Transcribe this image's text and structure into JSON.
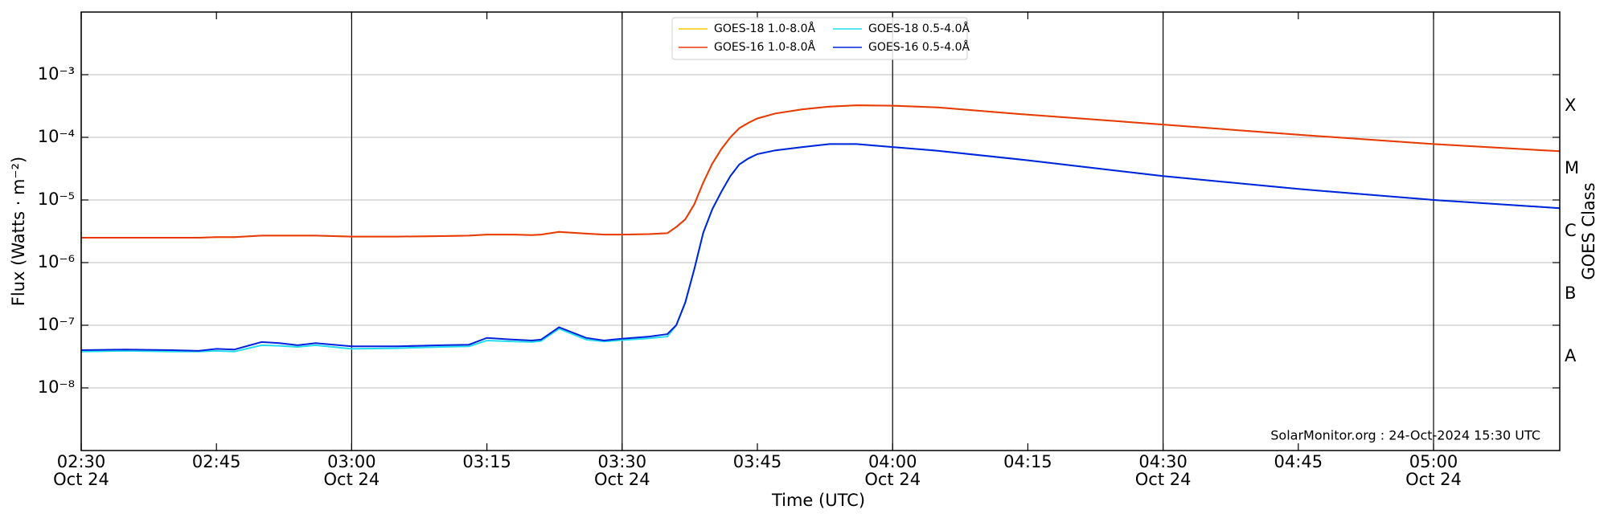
{
  "chart_data": {
    "type": "line",
    "y_label": "Flux (Watts · m⁻²)",
    "y2_label": "GOES Class",
    "x_label": "Time (UTC)",
    "annotation": "SolarMonitor.org : 24-Oct-2024 15:30 UTC",
    "log_y": true,
    "grid": true,
    "legend": "upper center",
    "xlim": [
      "02:30",
      "05:14"
    ],
    "xticks": [
      {
        "value": "02:30",
        "label": "02:30",
        "date": "Oct 24"
      },
      {
        "value": "02:45",
        "label": "02:45"
      },
      {
        "value": "03:00",
        "label": "03:00",
        "date": "Oct 24"
      },
      {
        "value": "03:15",
        "label": "03:15"
      },
      {
        "value": "03:30",
        "label": "03:30",
        "date": "Oct 24"
      },
      {
        "value": "03:45",
        "label": "03:45"
      },
      {
        "value": "04:00",
        "label": "04:00",
        "date": "Oct 24"
      },
      {
        "value": "04:15",
        "label": "04:15"
      },
      {
        "value": "04:30",
        "label": "04:30",
        "date": "Oct 24"
      },
      {
        "value": "04:45",
        "label": "04:45"
      },
      {
        "value": "05:00",
        "label": "05:00",
        "date": "Oct 24"
      }
    ],
    "ylim": [
      1e-09,
      0.01
    ],
    "yticks": [
      {
        "value": 0.001,
        "label": "10⁻³"
      },
      {
        "value": 0.0001,
        "label": "10⁻⁴"
      },
      {
        "value": 1e-05,
        "label": "10⁻⁵"
      },
      {
        "value": 1e-06,
        "label": "10⁻⁶"
      },
      {
        "value": 1e-07,
        "label": "10⁻⁷"
      },
      {
        "value": 1e-08,
        "label": "10⁻⁸"
      }
    ],
    "class_ticks": [
      {
        "value": 1e-08,
        "label": "A"
      },
      {
        "value": 1e-07,
        "label": "B"
      },
      {
        "value": 1e-06,
        "label": "C"
      },
      {
        "value": 1e-05,
        "label": "M"
      },
      {
        "value": 0.0001,
        "label": "X"
      }
    ],
    "x": [
      "02:30",
      "02:35",
      "02:40",
      "02:43",
      "02:45",
      "02:47",
      "02:50",
      "02:52",
      "02:54",
      "02:56",
      "03:00",
      "03:05",
      "03:10",
      "03:13",
      "03:15",
      "03:18",
      "03:20",
      "03:21",
      "03:23",
      "03:26",
      "03:28",
      "03:30",
      "03:33",
      "03:35",
      "03:36",
      "03:37",
      "03:38",
      "03:39",
      "03:40",
      "03:41",
      "03:42",
      "03:43",
      "03:44",
      "03:45",
      "03:47",
      "03:50",
      "03:53",
      "03:56",
      "04:00",
      "04:05",
      "04:15",
      "04:30",
      "04:45",
      "05:00",
      "05:14"
    ],
    "series": [
      {
        "name": "GOES-18 1.0-8.0Å",
        "color": "#ffcc00",
        "values": [
          2.5e-06,
          2.5e-06,
          2.5e-06,
          2.5e-06,
          2.55e-06,
          2.55e-06,
          2.7e-06,
          2.7e-06,
          2.7e-06,
          2.7e-06,
          2.6e-06,
          2.6e-06,
          2.65e-06,
          2.7e-06,
          2.8e-06,
          2.8e-06,
          2.75e-06,
          2.8e-06,
          3.1e-06,
          2.9e-06,
          2.8e-06,
          2.8e-06,
          2.85e-06,
          2.95e-06,
          3.7e-06,
          4.9e-06,
          8.5e-06,
          1.9e-05,
          3.8e-05,
          6.5e-05,
          0.0001,
          0.00014,
          0.00017,
          0.0002,
          0.00024,
          0.00028,
          0.00031,
          0.000325,
          0.00032,
          0.0003,
          0.00023,
          0.00016,
          0.00011,
          7.8e-05,
          6e-05
        ]
      },
      {
        "name": "GOES-16 1.0-8.0Å",
        "color": "#e8380d",
        "values": [
          2.5e-06,
          2.5e-06,
          2.5e-06,
          2.5e-06,
          2.55e-06,
          2.55e-06,
          2.7e-06,
          2.7e-06,
          2.7e-06,
          2.7e-06,
          2.6e-06,
          2.6e-06,
          2.65e-06,
          2.7e-06,
          2.8e-06,
          2.8e-06,
          2.75e-06,
          2.8e-06,
          3.1e-06,
          2.9e-06,
          2.8e-06,
          2.8e-06,
          2.85e-06,
          2.95e-06,
          3.7e-06,
          4.9e-06,
          8.5e-06,
          1.9e-05,
          3.8e-05,
          6.5e-05,
          0.0001,
          0.00014,
          0.00017,
          0.0002,
          0.00024,
          0.00028,
          0.00031,
          0.000325,
          0.00032,
          0.0003,
          0.00023,
          0.00016,
          0.00011,
          7.8e-05,
          6e-05
        ]
      },
      {
        "name": "GOES-18 0.5-4.0Å",
        "color": "#22ddee",
        "values": [
          3.8e-08,
          3.9e-08,
          3.8e-08,
          3.8e-08,
          3.9e-08,
          3.8e-08,
          4.8e-08,
          4.7e-08,
          4.5e-08,
          4.8e-08,
          4.2e-08,
          4.3e-08,
          4.5e-08,
          4.6e-08,
          5.7e-08,
          5.5e-08,
          5.4e-08,
          5.6e-08,
          8.8e-08,
          5.9e-08,
          5.5e-08,
          5.8e-08,
          6.2e-08,
          6.6e-08,
          1e-07,
          2.3e-07,
          7.8e-07,
          3e-06,
          7.1e-06,
          1.35e-05,
          2.4e-05,
          3.7e-05,
          4.6e-05,
          5.4e-05,
          6.2e-05,
          7e-05,
          7.8e-05,
          7.8e-05,
          7e-05,
          6.1e-05,
          4.3e-05,
          2.4e-05,
          1.5e-05,
          1e-05,
          7.4e-06
        ]
      },
      {
        "name": "GOES-16 0.5-4.0Å",
        "color": "#0022dd",
        "values": [
          4e-08,
          4.1e-08,
          4e-08,
          3.9e-08,
          4.2e-08,
          4.1e-08,
          5.4e-08,
          5.2e-08,
          4.8e-08,
          5.2e-08,
          4.6e-08,
          4.6e-08,
          4.8e-08,
          4.9e-08,
          6.3e-08,
          5.9e-08,
          5.7e-08,
          5.9e-08,
          9.3e-08,
          6.3e-08,
          5.7e-08,
          6.1e-08,
          6.6e-08,
          7.2e-08,
          1e-07,
          2.3e-07,
          7.8e-07,
          3e-06,
          7.1e-06,
          1.35e-05,
          2.4e-05,
          3.7e-05,
          4.6e-05,
          5.4e-05,
          6.2e-05,
          7e-05,
          7.8e-05,
          7.8e-05,
          7e-05,
          6.1e-05,
          4.3e-05,
          2.4e-05,
          1.5e-05,
          1e-05,
          7.4e-06
        ]
      }
    ]
  }
}
